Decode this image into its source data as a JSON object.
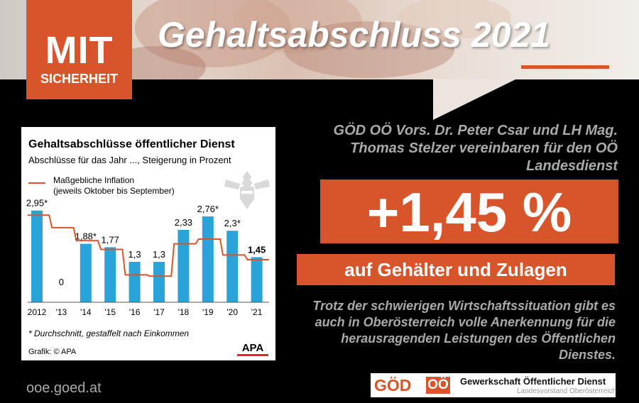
{
  "header": {
    "badge_line1": "MIT",
    "badge_line2": "SICHERHEIT",
    "title": "Gehaltsabschluss 2021"
  },
  "statement": "GÖD OÖ Vors. Dr. Peter Csar und LH Mag. Thomas Stelzer vereinbaren für den OÖ Landesdienst",
  "highlight": {
    "percent": "+1,45 %",
    "subtitle": "auf Gehälter und Zulagen"
  },
  "closing": "Trotz der schwierigen Wirtschaftssituation gibt es auch in Oberösterreich volle Anerkennung für die herausragenden Leistungen des Öffentlichen Dienstes.",
  "footer": {
    "url": "ooe.goed.at",
    "logo_goed": "GÖD",
    "logo_oo": "OÖ",
    "logo_name": "Gewerkschaft Öffentlicher Dienst",
    "logo_sub": "Landesvorstand Oberösterreich"
  },
  "colors": {
    "accent": "#d8542a",
    "bar": "#2aa3d8",
    "inflation_line": "#d8542a",
    "muted_text": "#aaaaaa"
  },
  "chart_data": {
    "type": "bar",
    "title": "Gehaltsabschlüsse öffentlicher Dienst",
    "subtitle": "Abschlüsse für das Jahr ..., Steigerung in Prozent",
    "categories": [
      "2012",
      "'13",
      "'14",
      "'15",
      "'16",
      "'17",
      "'18",
      "'19",
      "'20",
      "'21"
    ],
    "values": [
      2.95,
      0,
      1.88,
      1.77,
      1.3,
      1.3,
      2.33,
      2.76,
      2.3,
      1.45
    ],
    "value_labels": [
      "2,95*",
      "0",
      "1,88*",
      "1,77",
      "1,3",
      "1,3",
      "2,33",
      "2,76*",
      "2,3*",
      "1,45"
    ],
    "inflation": {
      "name": "Maßgebliche Inflation",
      "name_line2": "(jeweils Oktober bis September)",
      "values": [
        2.8,
        2.4,
        1.98,
        1.7,
        0.88,
        0.84,
        1.88,
        2.03,
        1.52,
        1.37
      ]
    },
    "ylim": [
      0,
      3.4
    ],
    "footnote": "* Durchschnitt, gestaffelt nach Einkommen",
    "source": "Grafik: © APA",
    "brand": "APA"
  }
}
